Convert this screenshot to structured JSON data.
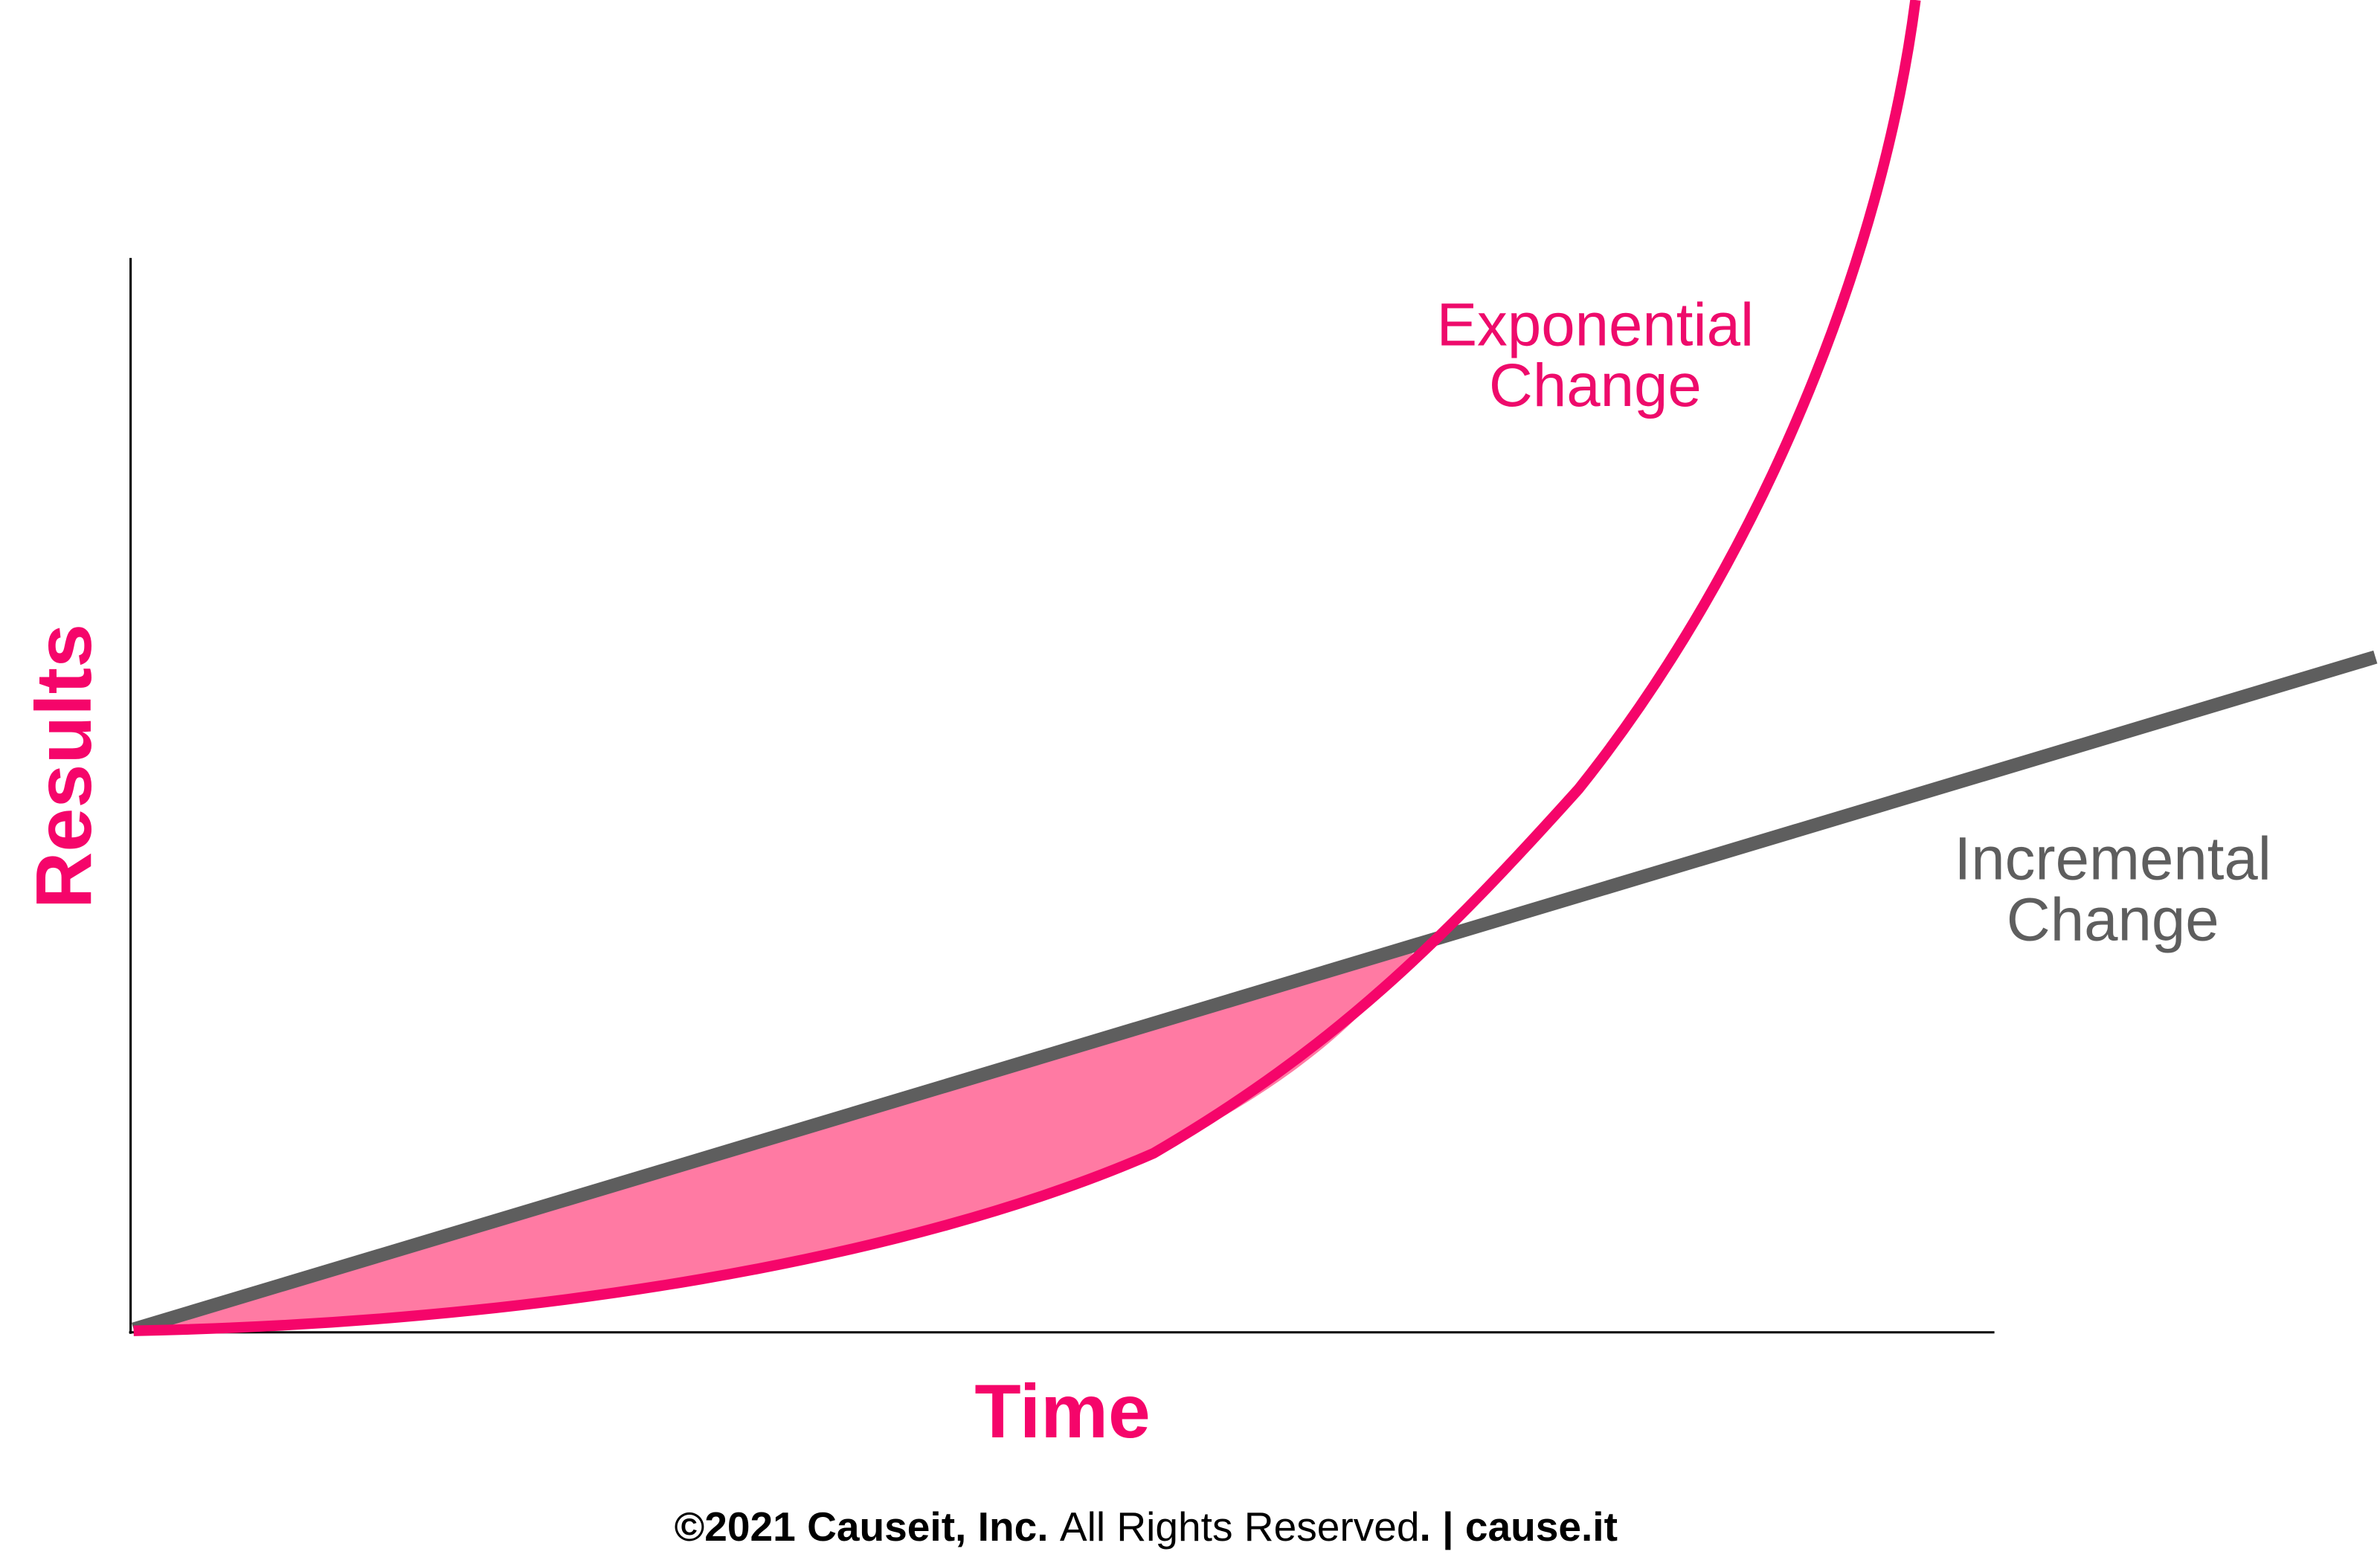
{
  "axes": {
    "y_label": "Results",
    "x_label": "Time"
  },
  "labels": {
    "exponential": [
      "Exponential",
      "Change"
    ],
    "incremental": [
      "Incremental",
      "Change"
    ]
  },
  "footer": {
    "parts": [
      "©2021 Causeit, Inc.",
      "All Rights Reserved",
      ". | cause.it"
    ]
  }
}
